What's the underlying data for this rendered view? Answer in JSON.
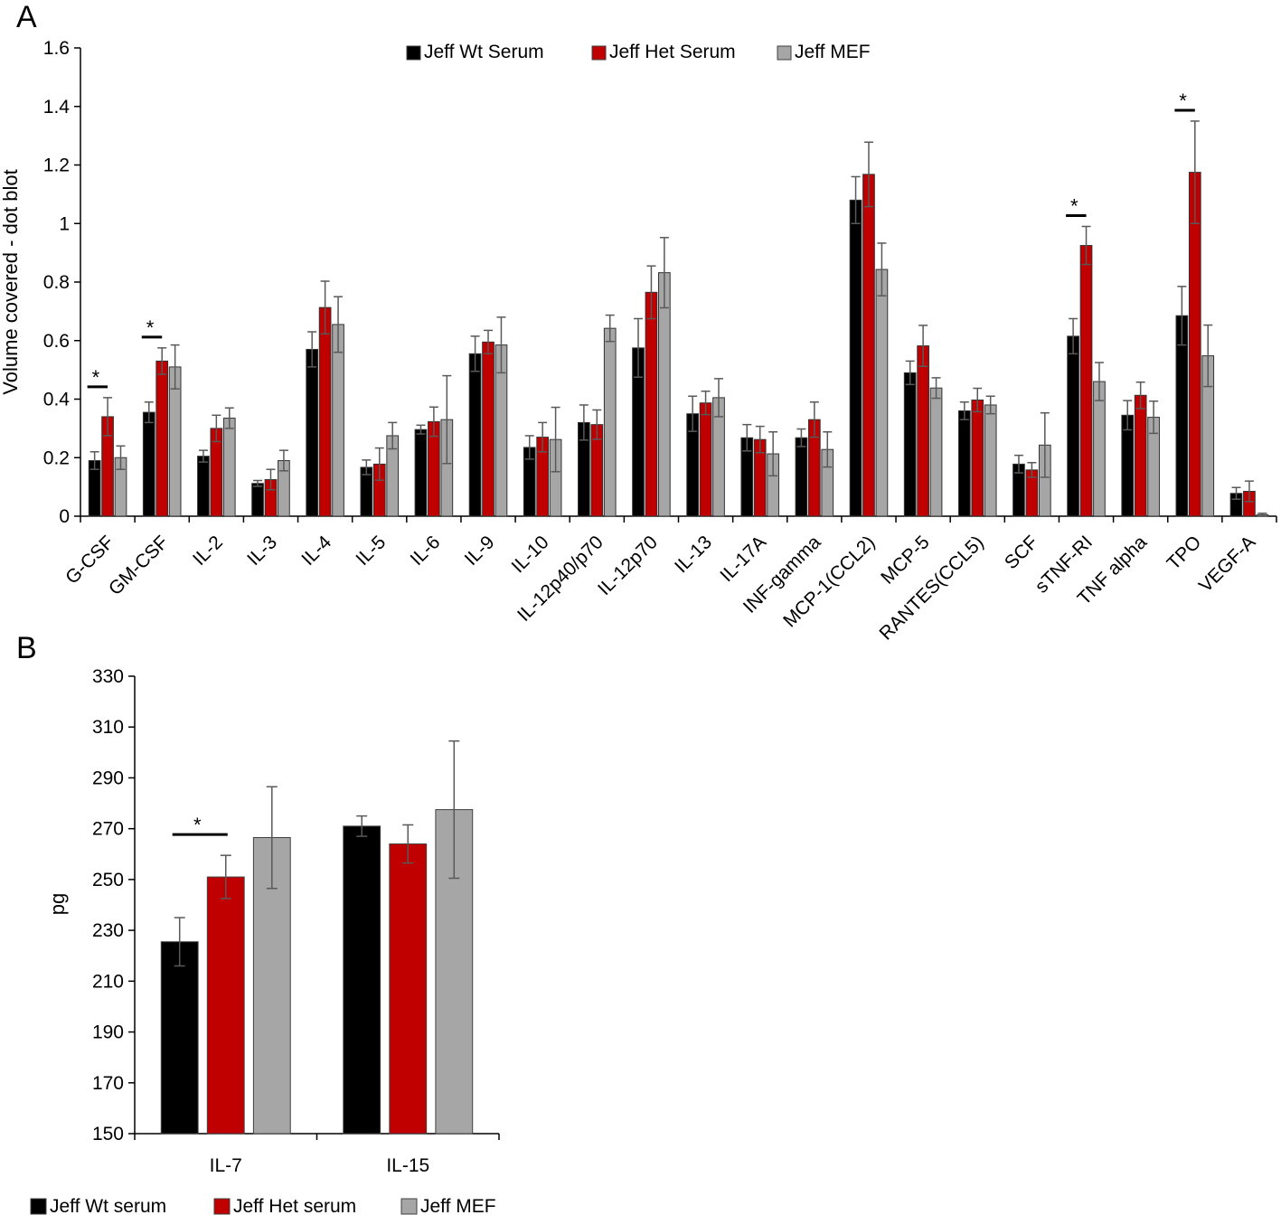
{
  "colors": {
    "wt": "#000000",
    "het": "#c00000",
    "mef": "#a6a6a6"
  },
  "chart_data": [
    {
      "panel": "A",
      "type": "bar",
      "title": "",
      "xlabel": "",
      "ylabel": "Volume covered - dot blot",
      "ylim": [
        0,
        1.6
      ],
      "yticks": [
        "0",
        "0.2",
        "0.4",
        "0.6",
        "0.8",
        "1",
        "1.2",
        "1.4",
        "1.6"
      ],
      "legend": "top-center",
      "categories": [
        "G-CSF",
        "GM-CSF",
        "IL-2",
        "IL-3",
        "IL-4",
        "IL-5",
        "IL-6",
        "IL-9",
        "IL-10",
        "IL-12p40/p70",
        "IL-12p70",
        "IL-13",
        "IL-17A",
        "INF-gamma",
        "MCP-1(CCL2)",
        "MCP-5",
        "RANTES(CCL5)",
        "SCF",
        "sTNF-RI",
        "TNF alpha",
        "TPO",
        "VEGF-A"
      ],
      "series": [
        {
          "name": "Jeff Wt Serum",
          "color": "#000000",
          "values": [
            0.19,
            0.355,
            0.205,
            0.112,
            0.57,
            0.167,
            0.296,
            0.555,
            0.235,
            0.32,
            0.575,
            0.35,
            0.268,
            0.268,
            1.08,
            0.49,
            0.36,
            0.178,
            0.615,
            0.345,
            0.685,
            0.078
          ],
          "errors": [
            0.03,
            0.035,
            0.02,
            0.01,
            0.06,
            0.025,
            0.015,
            0.06,
            0.04,
            0.06,
            0.1,
            0.06,
            0.045,
            0.03,
            0.08,
            0.04,
            0.03,
            0.03,
            0.06,
            0.05,
            0.1,
            0.02
          ]
        },
        {
          "name": "Jeff Het Serum",
          "color": "#c00000",
          "values": [
            0.34,
            0.53,
            0.3,
            0.125,
            0.713,
            0.178,
            0.323,
            0.595,
            0.27,
            0.313,
            0.765,
            0.387,
            0.262,
            0.33,
            1.168,
            0.582,
            0.397,
            0.158,
            0.925,
            0.413,
            1.175,
            0.085
          ],
          "errors": [
            0.065,
            0.045,
            0.045,
            0.035,
            0.09,
            0.055,
            0.05,
            0.04,
            0.05,
            0.05,
            0.09,
            0.04,
            0.045,
            0.06,
            0.11,
            0.07,
            0.04,
            0.025,
            0.065,
            0.045,
            0.175,
            0.035
          ]
        },
        {
          "name": "Jeff MEF",
          "color": "#a6a6a6",
          "values": [
            0.2,
            0.51,
            0.335,
            0.19,
            0.655,
            0.275,
            0.33,
            0.585,
            0.262,
            0.642,
            0.832,
            0.405,
            0.213,
            0.228,
            0.843,
            0.438,
            0.38,
            0.243,
            0.46,
            0.338,
            0.548,
            0.005
          ],
          "errors": [
            0.04,
            0.075,
            0.035,
            0.035,
            0.095,
            0.045,
            0.15,
            0.095,
            0.11,
            0.045,
            0.12,
            0.065,
            0.075,
            0.06,
            0.09,
            0.035,
            0.03,
            0.11,
            0.065,
            0.055,
            0.105,
            0.005
          ]
        }
      ],
      "significance": [
        {
          "category_index": 0,
          "label": "*"
        },
        {
          "category_index": 1,
          "label": "*"
        },
        {
          "category_index": 18,
          "label": "*"
        },
        {
          "category_index": 20,
          "label": "*"
        }
      ]
    },
    {
      "panel": "B",
      "type": "bar",
      "title": "",
      "xlabel": "",
      "ylabel": "pg",
      "ylim": [
        150,
        330
      ],
      "yticks": [
        "150",
        "170",
        "190",
        "210",
        "230",
        "250",
        "270",
        "290",
        "310",
        "330"
      ],
      "legend": "bottom-left",
      "categories": [
        "IL-7",
        "IL-15"
      ],
      "series": [
        {
          "name": "Jeff Wt serum",
          "color": "#000000",
          "values": [
            225.5,
            271
          ],
          "errors": [
            9.5,
            4
          ]
        },
        {
          "name": "Jeff Het serum",
          "color": "#c00000",
          "values": [
            251,
            264
          ],
          "errors": [
            8.5,
            7.5
          ]
        },
        {
          "name": "Jeff MEF",
          "color": "#a6a6a6",
          "values": [
            266.5,
            277.5
          ],
          "errors": [
            20,
            27
          ]
        }
      ],
      "significance": [
        {
          "category_index": 0,
          "label": "*"
        }
      ]
    }
  ]
}
